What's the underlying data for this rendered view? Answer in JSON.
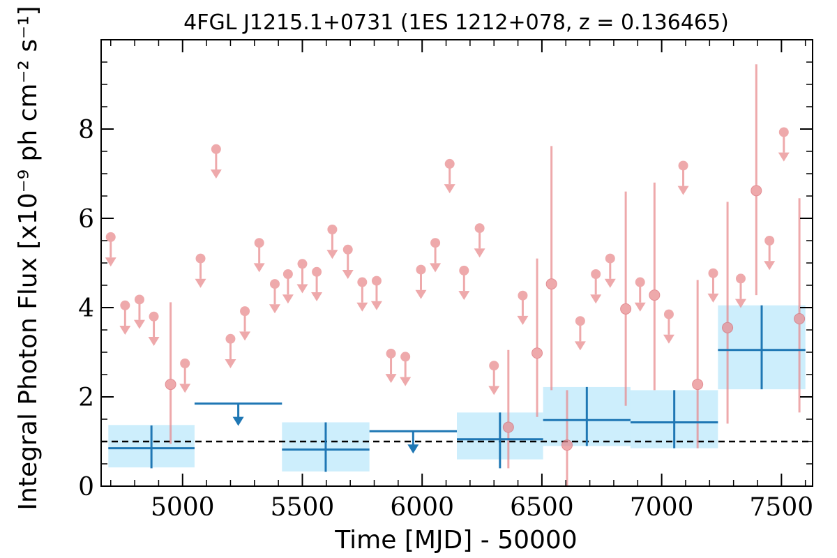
{
  "chart_data": {
    "type": "scatter",
    "title": "4FGL J1215.1+0731 (1ES 1212+078, z = 0.136465)",
    "xlabel": "Time [MJD] - 50000",
    "ylabel": "Integral Photon Flux [x10⁻⁹ ph cm⁻² s⁻¹]",
    "xlim": [
      4660,
      7630
    ],
    "ylim": [
      0,
      10
    ],
    "x_ticks": [
      5000,
      5500,
      6000,
      6500,
      7000,
      7500
    ],
    "x_tick_labels": [
      "5000",
      "5500",
      "6000",
      "6500",
      "7000",
      "7500"
    ],
    "y_ticks": [
      0,
      2,
      4,
      6,
      8
    ],
    "y_tick_labels": [
      "0",
      "2",
      "4",
      "6",
      "8"
    ],
    "grid": false,
    "reference_line": {
      "y": 1.0,
      "style": "dashed",
      "color": "#000000"
    },
    "colors": {
      "short_bins": "#e8888c",
      "long_bins": "#1f77b4",
      "long_bins_error_box": "#cdeefc"
    },
    "series": [
      {
        "bin": "short",
        "upper_limits": [
          {
            "x": 4700,
            "y": 5.58
          },
          {
            "x": 4760,
            "y": 4.05
          },
          {
            "x": 4820,
            "y": 4.18
          },
          {
            "x": 4880,
            "y": 3.8
          },
          {
            "x": 5010,
            "y": 2.75
          },
          {
            "x": 5075,
            "y": 5.1
          },
          {
            "x": 5140,
            "y": 7.55
          },
          {
            "x": 5200,
            "y": 3.3
          },
          {
            "x": 5260,
            "y": 3.92
          },
          {
            "x": 5320,
            "y": 5.45
          },
          {
            "x": 5385,
            "y": 4.53
          },
          {
            "x": 5440,
            "y": 4.75
          },
          {
            "x": 5500,
            "y": 4.98
          },
          {
            "x": 5560,
            "y": 4.8
          },
          {
            "x": 5625,
            "y": 5.75
          },
          {
            "x": 5690,
            "y": 5.3
          },
          {
            "x": 5750,
            "y": 4.57
          },
          {
            "x": 5810,
            "y": 4.6
          },
          {
            "x": 5870,
            "y": 2.97
          },
          {
            "x": 5930,
            "y": 2.9
          },
          {
            "x": 5995,
            "y": 4.85
          },
          {
            "x": 6055,
            "y": 5.45
          },
          {
            "x": 6115,
            "y": 7.22
          },
          {
            "x": 6175,
            "y": 4.83
          },
          {
            "x": 6240,
            "y": 5.78
          },
          {
            "x": 6300,
            "y": 2.7
          },
          {
            "x": 6420,
            "y": 4.27
          },
          {
            "x": 6660,
            "y": 3.7
          },
          {
            "x": 6725,
            "y": 4.75
          },
          {
            "x": 6785,
            "y": 5.1
          },
          {
            "x": 6910,
            "y": 4.57
          },
          {
            "x": 7030,
            "y": 3.85
          },
          {
            "x": 7090,
            "y": 7.18
          },
          {
            "x": 7215,
            "y": 4.77
          },
          {
            "x": 7330,
            "y": 4.65
          },
          {
            "x": 7450,
            "y": 5.5
          },
          {
            "x": 7510,
            "y": 7.93
          }
        ],
        "detections": [
          {
            "x": 4950,
            "y": 2.28,
            "ylo": 0.95,
            "yhi": 4.12
          },
          {
            "x": 6360,
            "y": 1.32,
            "ylo": 0.4,
            "yhi": 3.05
          },
          {
            "x": 6480,
            "y": 2.98,
            "ylo": 1.55,
            "yhi": 5.1
          },
          {
            "x": 6540,
            "y": 4.53,
            "ylo": 2.15,
            "yhi": 7.62
          },
          {
            "x": 6605,
            "y": 0.92,
            "ylo": 0.0,
            "yhi": 2.15
          },
          {
            "x": 6850,
            "y": 3.97,
            "ylo": 1.8,
            "yhi": 6.6
          },
          {
            "x": 6970,
            "y": 4.28,
            "ylo": 2.15,
            "yhi": 6.8
          },
          {
            "x": 7150,
            "y": 2.28,
            "ylo": 0.85,
            "yhi": 4.62
          },
          {
            "x": 7275,
            "y": 3.55,
            "ylo": 1.4,
            "yhi": 6.37
          },
          {
            "x": 7395,
            "y": 6.62,
            "ylo": 4.28,
            "yhi": 9.45
          },
          {
            "x": 7575,
            "y": 3.75,
            "ylo": 1.65,
            "yhi": 6.45
          }
        ]
      },
      {
        "bin": "long",
        "detections": [
          {
            "x0": 4690,
            "x1": 5050,
            "y": 0.85,
            "ylo": 0.4,
            "yhi": 1.36,
            "box_lo": 0.42,
            "box_hi": 1.37
          },
          {
            "x0": 5415,
            "x1": 5780,
            "y": 0.82,
            "ylo": 0.32,
            "yhi": 1.43,
            "box_lo": 0.33,
            "box_hi": 1.43
          },
          {
            "x0": 6145,
            "x1": 6505,
            "y": 1.05,
            "ylo": 0.4,
            "yhi": 1.65,
            "box_lo": 0.6,
            "box_hi": 1.65
          },
          {
            "x0": 6505,
            "x1": 6870,
            "y": 1.48,
            "ylo": 0.9,
            "yhi": 2.22,
            "box_lo": 0.9,
            "box_hi": 2.22
          },
          {
            "x0": 6870,
            "x1": 7235,
            "y": 1.43,
            "ylo": 0.85,
            "yhi": 2.15,
            "box_lo": 0.85,
            "box_hi": 2.15
          },
          {
            "x0": 7235,
            "x1": 7600,
            "y": 3.05,
            "ylo": 2.17,
            "yhi": 4.05,
            "box_lo": 2.17,
            "box_hi": 4.05
          }
        ],
        "upper_limits": [
          {
            "x0": 5050,
            "x1": 5415,
            "y": 1.85
          },
          {
            "x0": 5780,
            "x1": 6145,
            "y": 1.23
          }
        ]
      }
    ]
  }
}
